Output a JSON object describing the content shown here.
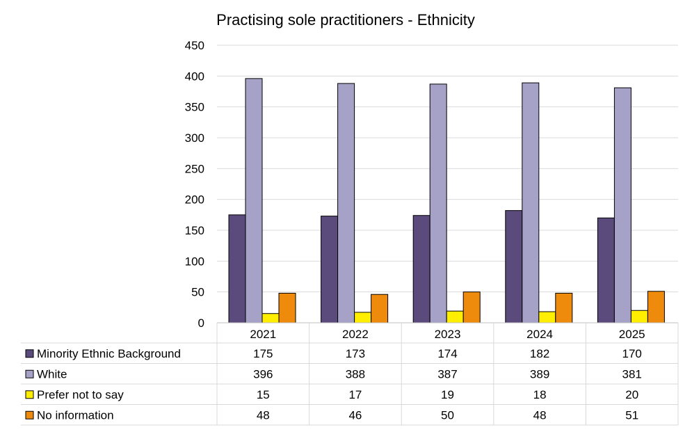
{
  "chart_data": {
    "type": "bar",
    "title": "Practising sole practitioners - Ethnicity",
    "categories": [
      "2021",
      "2022",
      "2023",
      "2024",
      "2025"
    ],
    "ylim": [
      0,
      450
    ],
    "yticks": [
      0,
      50,
      100,
      150,
      200,
      250,
      300,
      350,
      400,
      450
    ],
    "grid": true,
    "legend": "data-table-below",
    "series": [
      {
        "name": "Minority Ethnic Background",
        "color": "#5b4a7c",
        "values": [
          175,
          173,
          174,
          182,
          170
        ]
      },
      {
        "name": "White",
        "color": "#a6a1c7",
        "values": [
          396,
          388,
          387,
          389,
          381
        ]
      },
      {
        "name": "Prefer not to say",
        "color": "#ffee00",
        "values": [
          15,
          17,
          19,
          18,
          20
        ]
      },
      {
        "name": "No information",
        "color": "#ee8a0c",
        "values": [
          48,
          46,
          50,
          48,
          51
        ]
      }
    ]
  }
}
